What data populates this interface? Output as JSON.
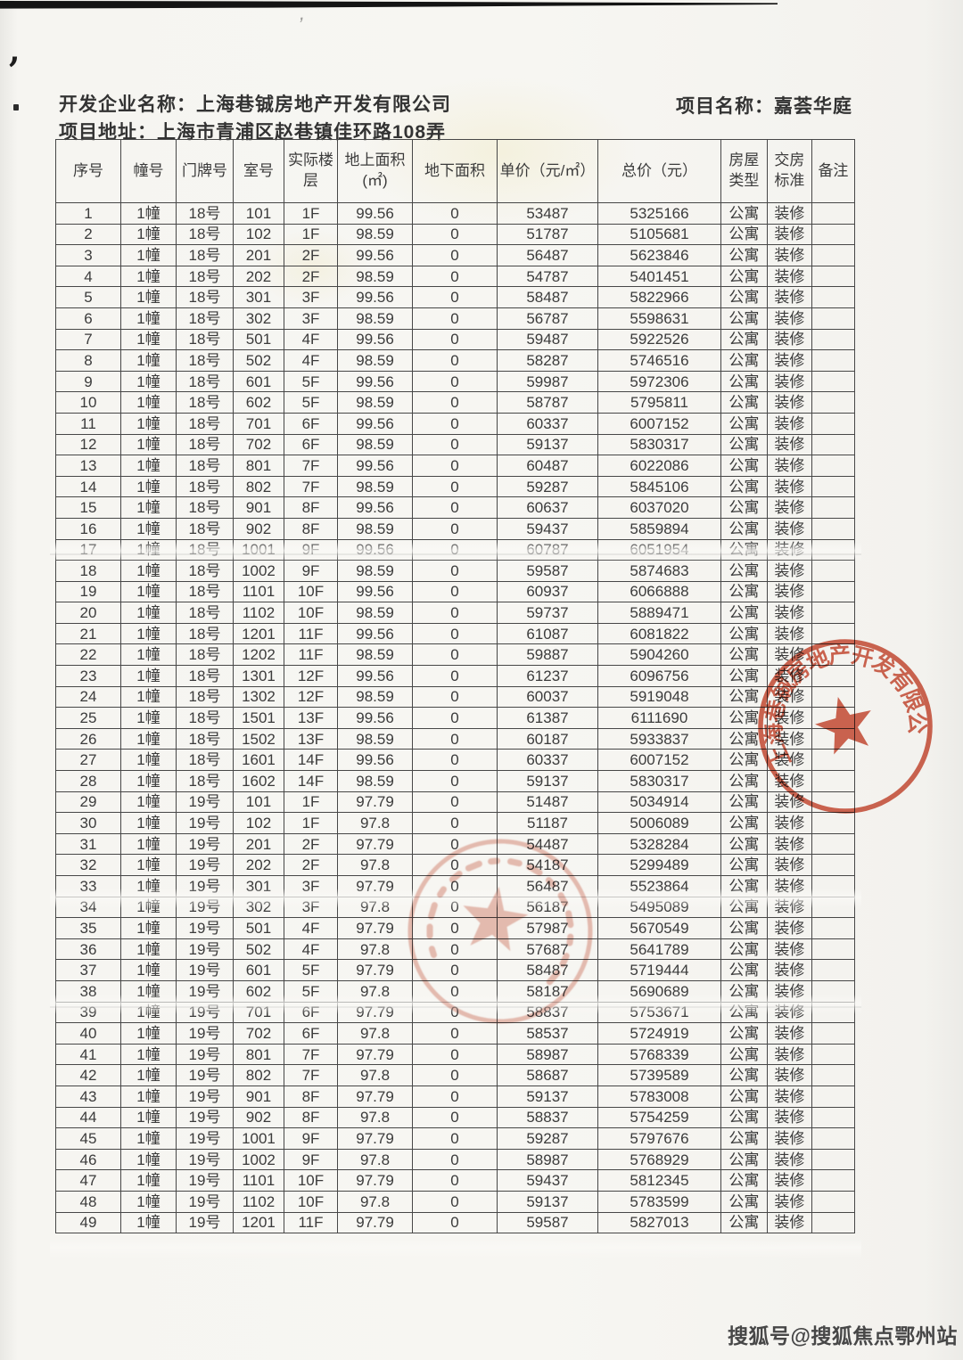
{
  "header": {
    "developer_label": "开发企业名称：",
    "developer_name": "上海巷铖房地产开发有限公司",
    "project_label": "项目名称：",
    "project_name": "嘉荟华庭",
    "address_label": "项目地址：",
    "address_value": "上海市青浦区赵巷镇佳环路108弄"
  },
  "table": {
    "headers": [
      "序号",
      "幢号",
      "门牌号",
      "室号",
      "实际楼\n层",
      "地上面积\n(㎡)",
      "地下面积",
      "单价（元/㎡）",
      "总价（元）",
      "房屋\n类型",
      "交房\n标准",
      "备注"
    ],
    "rows": [
      [
        "1",
        "1幢",
        "18号",
        "101",
        "1F",
        "99.56",
        "0",
        "53487",
        "5325166",
        "公寓",
        "装修",
        ""
      ],
      [
        "2",
        "1幢",
        "18号",
        "102",
        "1F",
        "98.59",
        "0",
        "51787",
        "5105681",
        "公寓",
        "装修",
        ""
      ],
      [
        "3",
        "1幢",
        "18号",
        "201",
        "2F",
        "99.56",
        "0",
        "56487",
        "5623846",
        "公寓",
        "装修",
        ""
      ],
      [
        "4",
        "1幢",
        "18号",
        "202",
        "2F",
        "98.59",
        "0",
        "54787",
        "5401451",
        "公寓",
        "装修",
        ""
      ],
      [
        "5",
        "1幢",
        "18号",
        "301",
        "3F",
        "99.56",
        "0",
        "58487",
        "5822966",
        "公寓",
        "装修",
        ""
      ],
      [
        "6",
        "1幢",
        "18号",
        "302",
        "3F",
        "98.59",
        "0",
        "56787",
        "5598631",
        "公寓",
        "装修",
        ""
      ],
      [
        "7",
        "1幢",
        "18号",
        "501",
        "4F",
        "99.56",
        "0",
        "59487",
        "5922526",
        "公寓",
        "装修",
        ""
      ],
      [
        "8",
        "1幢",
        "18号",
        "502",
        "4F",
        "98.59",
        "0",
        "58287",
        "5746516",
        "公寓",
        "装修",
        ""
      ],
      [
        "9",
        "1幢",
        "18号",
        "601",
        "5F",
        "99.56",
        "0",
        "59987",
        "5972306",
        "公寓",
        "装修",
        ""
      ],
      [
        "10",
        "1幢",
        "18号",
        "602",
        "5F",
        "98.59",
        "0",
        "58787",
        "5795811",
        "公寓",
        "装修",
        ""
      ],
      [
        "11",
        "1幢",
        "18号",
        "701",
        "6F",
        "99.56",
        "0",
        "60337",
        "6007152",
        "公寓",
        "装修",
        ""
      ],
      [
        "12",
        "1幢",
        "18号",
        "702",
        "6F",
        "98.59",
        "0",
        "59137",
        "5830317",
        "公寓",
        "装修",
        ""
      ],
      [
        "13",
        "1幢",
        "18号",
        "801",
        "7F",
        "99.56",
        "0",
        "60487",
        "6022086",
        "公寓",
        "装修",
        ""
      ],
      [
        "14",
        "1幢",
        "18号",
        "802",
        "7F",
        "98.59",
        "0",
        "59287",
        "5845106",
        "公寓",
        "装修",
        ""
      ],
      [
        "15",
        "1幢",
        "18号",
        "901",
        "8F",
        "99.56",
        "0",
        "60637",
        "6037020",
        "公寓",
        "装修",
        ""
      ],
      [
        "16",
        "1幢",
        "18号",
        "902",
        "8F",
        "98.59",
        "0",
        "59437",
        "5859894",
        "公寓",
        "装修",
        ""
      ],
      [
        "17",
        "1幢",
        "18号",
        "1001",
        "9F",
        "99.56",
        "0",
        "60787",
        "6051954",
        "公寓",
        "装修",
        ""
      ],
      [
        "18",
        "1幢",
        "18号",
        "1002",
        "9F",
        "98.59",
        "0",
        "59587",
        "5874683",
        "公寓",
        "装修",
        ""
      ],
      [
        "19",
        "1幢",
        "18号",
        "1101",
        "10F",
        "99.56",
        "0",
        "60937",
        "6066888",
        "公寓",
        "装修",
        ""
      ],
      [
        "20",
        "1幢",
        "18号",
        "1102",
        "10F",
        "98.59",
        "0",
        "59737",
        "5889471",
        "公寓",
        "装修",
        ""
      ],
      [
        "21",
        "1幢",
        "18号",
        "1201",
        "11F",
        "99.56",
        "0",
        "61087",
        "6081822",
        "公寓",
        "装修",
        ""
      ],
      [
        "22",
        "1幢",
        "18号",
        "1202",
        "11F",
        "98.59",
        "0",
        "59887",
        "5904260",
        "公寓",
        "装修",
        ""
      ],
      [
        "23",
        "1幢",
        "18号",
        "1301",
        "12F",
        "99.56",
        "0",
        "61237",
        "6096756",
        "公寓",
        "装修",
        ""
      ],
      [
        "24",
        "1幢",
        "18号",
        "1302",
        "12F",
        "98.59",
        "0",
        "60037",
        "5919048",
        "公寓",
        "装修",
        ""
      ],
      [
        "25",
        "1幢",
        "18号",
        "1501",
        "13F",
        "99.56",
        "0",
        "61387",
        "6111690",
        "公寓",
        "装修",
        ""
      ],
      [
        "26",
        "1幢",
        "18号",
        "1502",
        "13F",
        "98.59",
        "0",
        "60187",
        "5933837",
        "公寓",
        "装修",
        ""
      ],
      [
        "27",
        "1幢",
        "18号",
        "1601",
        "14F",
        "99.56",
        "0",
        "60337",
        "6007152",
        "公寓",
        "装修",
        ""
      ],
      [
        "28",
        "1幢",
        "18号",
        "1602",
        "14F",
        "98.59",
        "0",
        "59137",
        "5830317",
        "公寓",
        "装修",
        ""
      ],
      [
        "29",
        "1幢",
        "19号",
        "101",
        "1F",
        "97.79",
        "0",
        "51487",
        "5034914",
        "公寓",
        "装修",
        ""
      ],
      [
        "30",
        "1幢",
        "19号",
        "102",
        "1F",
        "97.8",
        "0",
        "51187",
        "5006089",
        "公寓",
        "装修",
        ""
      ],
      [
        "31",
        "1幢",
        "19号",
        "201",
        "2F",
        "97.79",
        "0",
        "54487",
        "5328284",
        "公寓",
        "装修",
        ""
      ],
      [
        "32",
        "1幢",
        "19号",
        "202",
        "2F",
        "97.8",
        "0",
        "54187",
        "5299489",
        "公寓",
        "装修",
        ""
      ],
      [
        "33",
        "1幢",
        "19号",
        "301",
        "3F",
        "97.79",
        "0",
        "56487",
        "5523864",
        "公寓",
        "装修",
        ""
      ],
      [
        "34",
        "1幢",
        "19号",
        "302",
        "3F",
        "97.8",
        "0",
        "56187",
        "5495089",
        "公寓",
        "装修",
        ""
      ],
      [
        "35",
        "1幢",
        "19号",
        "501",
        "4F",
        "97.79",
        "0",
        "57987",
        "5670549",
        "公寓",
        "装修",
        ""
      ],
      [
        "36",
        "1幢",
        "19号",
        "502",
        "4F",
        "97.8",
        "0",
        "57687",
        "5641789",
        "公寓",
        "装修",
        ""
      ],
      [
        "37",
        "1幢",
        "19号",
        "601",
        "5F",
        "97.79",
        "0",
        "58487",
        "5719444",
        "公寓",
        "装修",
        ""
      ],
      [
        "38",
        "1幢",
        "19号",
        "602",
        "5F",
        "97.8",
        "0",
        "58187",
        "5690689",
        "公寓",
        "装修",
        ""
      ],
      [
        "39",
        "1幢",
        "19号",
        "701",
        "6F",
        "97.79",
        "0",
        "58837",
        "5753671",
        "公寓",
        "装修",
        ""
      ],
      [
        "40",
        "1幢",
        "19号",
        "702",
        "6F",
        "97.8",
        "0",
        "58537",
        "5724919",
        "公寓",
        "装修",
        ""
      ],
      [
        "41",
        "1幢",
        "19号",
        "801",
        "7F",
        "97.79",
        "0",
        "58987",
        "5768339",
        "公寓",
        "装修",
        ""
      ],
      [
        "42",
        "1幢",
        "19号",
        "802",
        "7F",
        "97.8",
        "0",
        "58687",
        "5739589",
        "公寓",
        "装修",
        ""
      ],
      [
        "43",
        "1幢",
        "19号",
        "901",
        "8F",
        "97.79",
        "0",
        "59137",
        "5783008",
        "公寓",
        "装修",
        ""
      ],
      [
        "44",
        "1幢",
        "19号",
        "902",
        "8F",
        "97.8",
        "0",
        "58837",
        "5754259",
        "公寓",
        "装修",
        ""
      ],
      [
        "45",
        "1幢",
        "19号",
        "1001",
        "9F",
        "97.79",
        "0",
        "59287",
        "5797676",
        "公寓",
        "装修",
        ""
      ],
      [
        "46",
        "1幢",
        "19号",
        "1002",
        "9F",
        "97.8",
        "0",
        "58987",
        "5768929",
        "公寓",
        "装修",
        ""
      ],
      [
        "47",
        "1幢",
        "19号",
        "1101",
        "10F",
        "97.79",
        "0",
        "59437",
        "5812345",
        "公寓",
        "装修",
        ""
      ],
      [
        "48",
        "1幢",
        "19号",
        "1102",
        "10F",
        "97.8",
        "0",
        "59137",
        "5783599",
        "公寓",
        "装修",
        ""
      ],
      [
        "49",
        "1幢",
        "19号",
        "1201",
        "11F",
        "97.79",
        "0",
        "59587",
        "5827013",
        "公寓",
        "装修",
        ""
      ]
    ]
  },
  "stamps": {
    "company_seal_text": "上海巷铖房地产开发有限公司"
  },
  "watermark": {
    "text": "搜狐号@搜狐焦点鄂州站"
  },
  "colors": {
    "seal_red": "#c8452d",
    "seal_faint_red": "#cf6a54",
    "paper": "#f6f5f1",
    "ink": "#3b3b3b"
  }
}
